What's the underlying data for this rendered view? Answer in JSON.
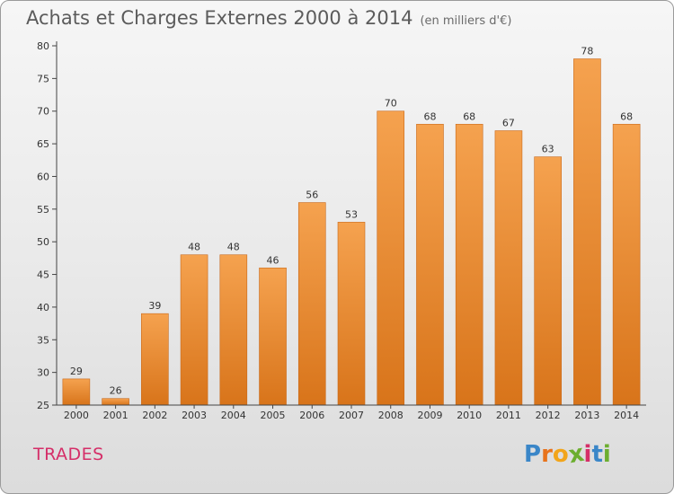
{
  "header": {
    "title": "Achats et Charges Externes 2000 à 2014",
    "subtitle": "(en milliers d'€)"
  },
  "footer": {
    "commune": "TRADES",
    "logo_letters": [
      "P",
      "r",
      "o",
      "x",
      "i",
      "t",
      "i"
    ],
    "logo_colors": [
      "#3a86c8",
      "#e8731c",
      "#f2a51a",
      "#6cae2f",
      "#d52e68",
      "#3a86c8",
      "#6cae2f"
    ]
  },
  "colors": {
    "bar_light": "#f5a24f",
    "bar_dark": "#d8741a",
    "axis": "#444444",
    "grid": "#cfcfcf"
  },
  "chart_data": {
    "type": "bar",
    "title": "Achats et Charges Externes 2000 à 2014",
    "subtitle": "(en milliers d'€)",
    "categories": [
      "2000",
      "2001",
      "2002",
      "2003",
      "2004",
      "2005",
      "2006",
      "2007",
      "2008",
      "2009",
      "2010",
      "2011",
      "2012",
      "2013",
      "2014"
    ],
    "values": [
      29,
      26,
      39,
      48,
      48,
      46,
      56,
      53,
      70,
      68,
      68,
      67,
      63,
      78,
      68
    ],
    "ylim": [
      25,
      80
    ],
    "yticks": [
      25,
      30,
      35,
      40,
      45,
      50,
      55,
      60,
      65,
      70,
      75,
      80
    ],
    "grid": false
  }
}
